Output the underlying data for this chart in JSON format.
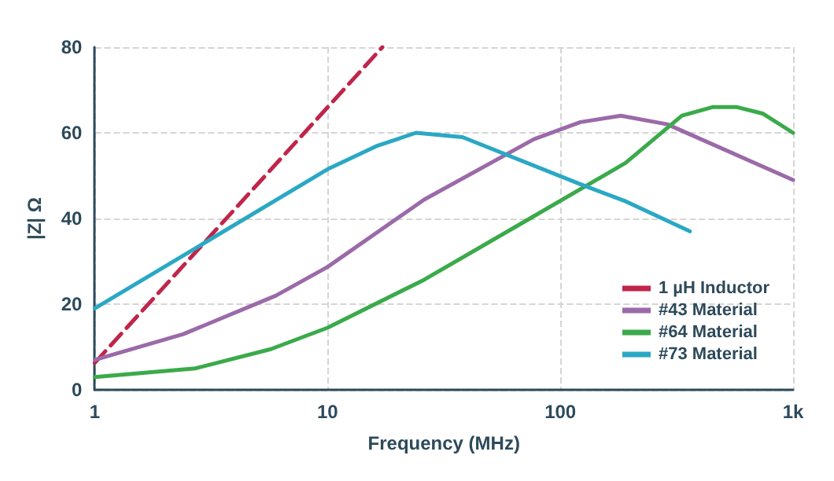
{
  "chart_data": {
    "type": "line",
    "xlabel": "Frequency (MHz)",
    "ylabel": "|Z| Ω",
    "log": "x",
    "xlim": [
      1,
      1000
    ],
    "xticks": [
      1,
      10,
      100,
      {
        "value": 1000,
        "label": "1k"
      }
    ],
    "ylim": [
      0,
      80
    ],
    "yticks": [
      0,
      20,
      40,
      60,
      80
    ],
    "grid": true,
    "legend": "bottom right",
    "marker": "none",
    "series": [
      {
        "name": "1 µH Inductor",
        "color": "#c0254a",
        "line_style": "dashed",
        "x": [
          1,
          17.2
        ],
        "values": [
          6.3,
          80
        ]
      },
      {
        "name": "#43 Material",
        "color": "#9b6aa8",
        "x": [
          1,
          2.4,
          6,
          10,
          26,
          77,
          122,
          182,
          288,
          1000
        ],
        "values": [
          7,
          13,
          22,
          28.7,
          44.4,
          58.5,
          62.5,
          64,
          62,
          49
        ]
      },
      {
        "name": "#64 Material",
        "color": "#3aaa4a",
        "x": [
          1,
          2.7,
          5.7,
          10,
          26,
          74,
          191,
          333,
          450,
          575,
          740,
          1000
        ],
        "values": [
          3,
          5,
          9.5,
          14.5,
          25.7,
          40,
          53,
          64,
          66,
          66,
          64.5,
          60
        ]
      },
      {
        "name": "#73 Material",
        "color": "#2aa8c4",
        "x": [
          1,
          10,
          16.4,
          24,
          38,
          122,
          191,
          360
        ],
        "values": [
          19,
          51.5,
          57,
          60,
          59,
          48,
          44,
          37
        ]
      }
    ]
  }
}
